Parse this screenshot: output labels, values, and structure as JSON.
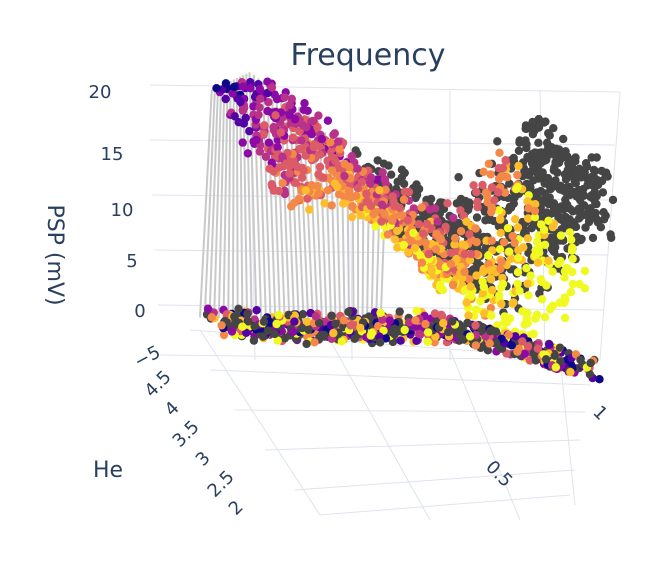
{
  "chart_data": {
    "type": "scatter3d",
    "title": "Frequency",
    "axes": {
      "z": {
        "label": "PSP (mV)",
        "range": [
          -5,
          20
        ],
        "ticks": [
          "−5",
          "0",
          "5",
          "10",
          "15",
          "20"
        ]
      },
      "y": {
        "label": "He",
        "range": [
          2,
          4.5
        ],
        "ticks": [
          "2",
          "2.5",
          "3",
          "3.5",
          "4",
          "4.5"
        ]
      },
      "x": {
        "label": "",
        "range": [
          0,
          1.1
        ],
        "ticks": [
          "0.5",
          "1"
        ]
      }
    },
    "grid": true,
    "legend": "none",
    "colorscale": "plasma",
    "colors": {
      "dark_mass": "#454545",
      "stems": "#c9c9c9",
      "grid": "#dfe3ee",
      "text": "#2a3f5f",
      "plasma": [
        "#0d0887",
        "#5302a3",
        "#8b0aa5",
        "#b83289",
        "#db5c68",
        "#f48849",
        "#febd2a",
        "#f0f921"
      ]
    },
    "series": [
      {
        "role": "psp surface (upper layer)",
        "points": [
          {
            "x": 0.05,
            "he": 4.5,
            "psp": 17
          },
          {
            "x": 0.15,
            "he": 4.2,
            "psp": 19
          },
          {
            "x": 0.3,
            "he": 3.8,
            "psp": 16
          },
          {
            "x": 0.5,
            "he": 3.4,
            "psp": 10
          },
          {
            "x": 0.7,
            "he": 3.0,
            "psp": 6
          },
          {
            "x": 0.9,
            "he": 2.6,
            "psp": 12
          },
          {
            "x": 1.0,
            "he": 2.3,
            "psp": 15
          }
        ]
      },
      {
        "role": "psp floor (lower layer)",
        "points": [
          {
            "x": 0.0,
            "he": 4.5,
            "psp": -3
          },
          {
            "x": 0.3,
            "he": 3.6,
            "psp": -2
          },
          {
            "x": 0.6,
            "he": 2.8,
            "psp": -1
          },
          {
            "x": 1.0,
            "he": 2.0,
            "psp": -4
          }
        ]
      }
    ]
  }
}
